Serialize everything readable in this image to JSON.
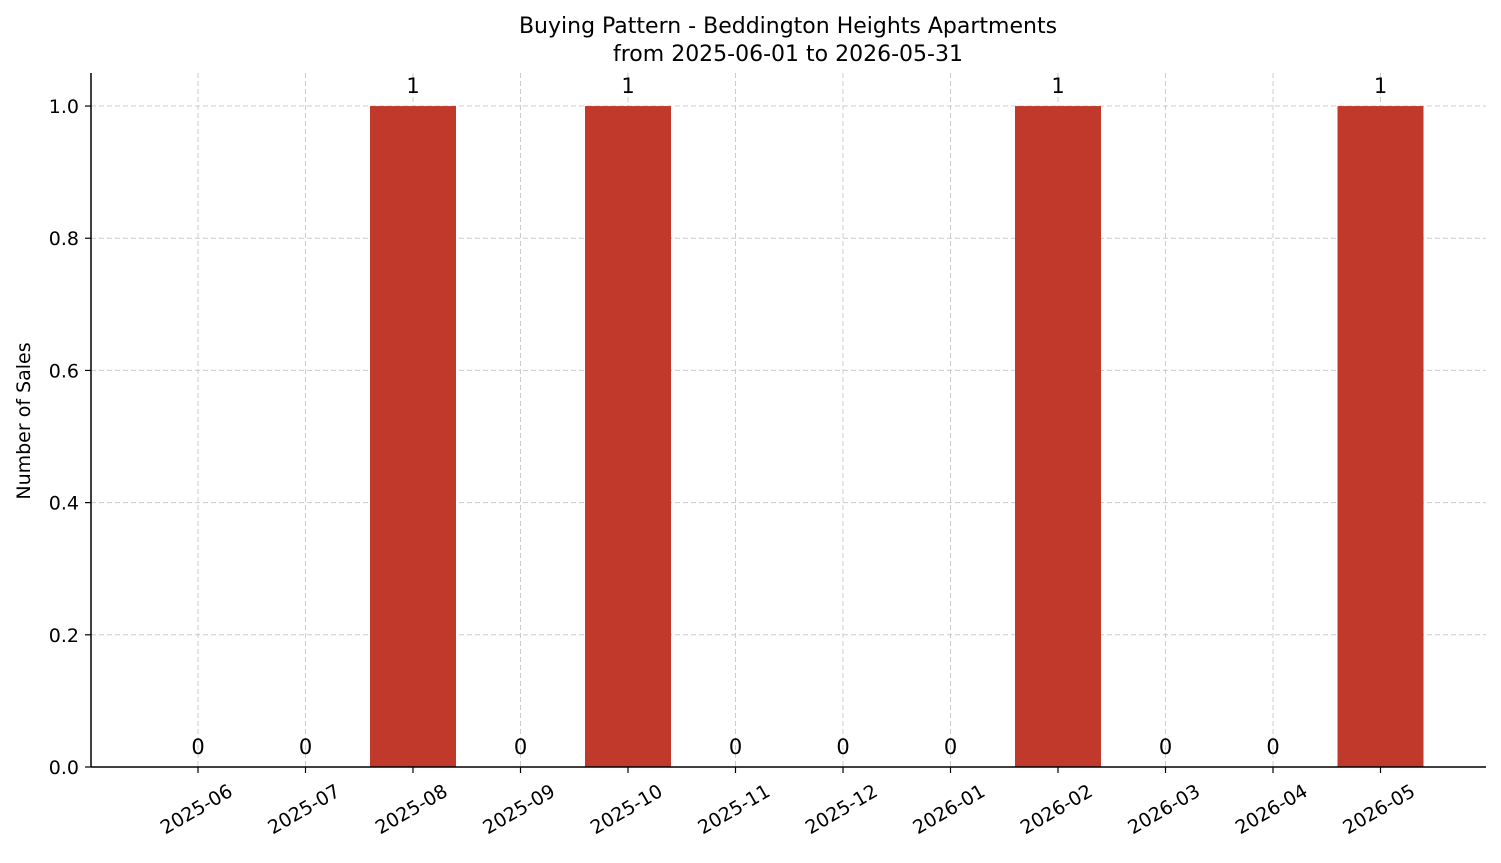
{
  "chart_data": {
    "type": "bar",
    "title": "Buying Pattern - Beddington Heights Apartments",
    "subtitle": "from 2025-06-01 to 2026-05-31",
    "xlabel": "",
    "ylabel": "Number of Sales",
    "categories": [
      "2025-06",
      "2025-07",
      "2025-08",
      "2025-09",
      "2025-10",
      "2025-11",
      "2025-12",
      "2026-01",
      "2026-02",
      "2026-03",
      "2026-04",
      "2026-05"
    ],
    "values": [
      0,
      0,
      1,
      0,
      1,
      0,
      0,
      0,
      1,
      0,
      0,
      1
    ],
    "data_labels": [
      "0",
      "0",
      "1",
      "0",
      "1",
      "0",
      "0",
      "0",
      "1",
      "0",
      "0",
      "1"
    ],
    "ylim": [
      0,
      1.05
    ],
    "yticks": [
      0.0,
      0.2,
      0.4,
      0.6,
      0.8,
      1.0
    ],
    "ytick_labels": [
      "0.0",
      "0.2",
      "0.4",
      "0.6",
      "0.8",
      "1.0"
    ],
    "bar_color": "#c0392b",
    "grid": true,
    "legend": false
  }
}
